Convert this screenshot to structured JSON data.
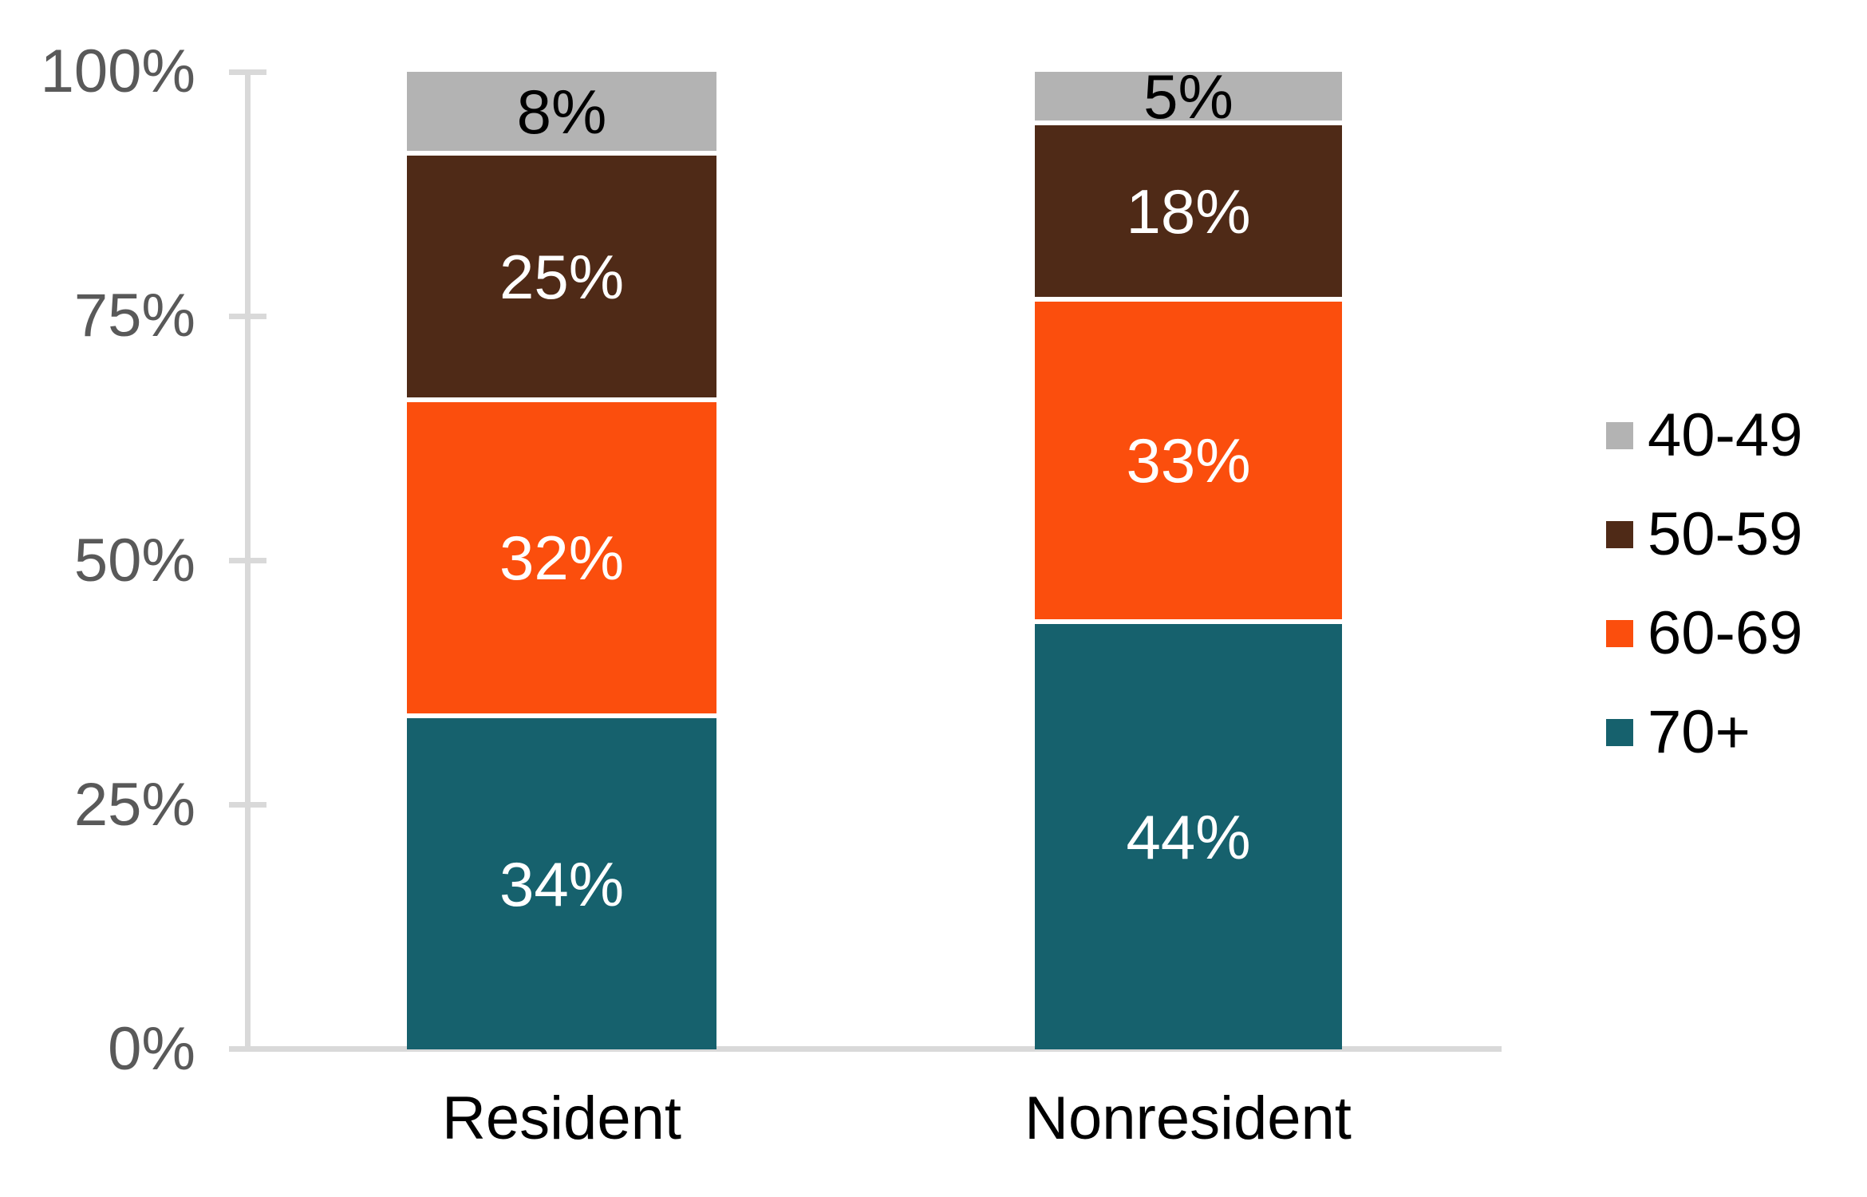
{
  "chart_data": {
    "type": "bar",
    "stacked": true,
    "orientation": "vertical",
    "title": "",
    "categories": [
      "Resident",
      "Nonresident"
    ],
    "series": [
      {
        "name": "70+",
        "color": "#16616d",
        "values": [
          34,
          44
        ],
        "labels": [
          "34%",
          "44%"
        ],
        "label_color": "#ffffff"
      },
      {
        "name": "60-69",
        "color": "#fb4e0d",
        "values": [
          32,
          33
        ],
        "labels": [
          "32%",
          "33%"
        ],
        "label_color": "#ffffff"
      },
      {
        "name": "50-59",
        "color": "#4f2a17",
        "values": [
          25,
          18
        ],
        "labels": [
          "25%",
          "18%"
        ],
        "label_color": "#ffffff"
      },
      {
        "name": "40-49",
        "color": "#b3b3b3",
        "values": [
          8,
          5
        ],
        "labels": [
          "8%",
          "5%"
        ],
        "label_color": "#000000"
      }
    ],
    "y_axis": {
      "tick_labels": [
        "100%",
        "75%",
        "50%",
        "25%",
        "0%"
      ],
      "tick_values": [
        100,
        75,
        50,
        25,
        0
      ],
      "range": [
        0,
        100
      ],
      "grid": false
    },
    "legend": {
      "position": "right",
      "items": [
        {
          "label": "40-49",
          "color": "#b3b3b3"
        },
        {
          "label": "50-59",
          "color": "#4f2a17"
        },
        {
          "label": "60-69",
          "color": "#fb4e0d"
        },
        {
          "label": "70+",
          "color": "#16616d"
        }
      ]
    },
    "colors": {
      "axis_line": "#d9d9d9",
      "axis_text": "#595959",
      "category_text": "#000000",
      "legend_text": "#000000",
      "segment_separator": "#ffffff",
      "background": "#ffffff"
    }
  }
}
